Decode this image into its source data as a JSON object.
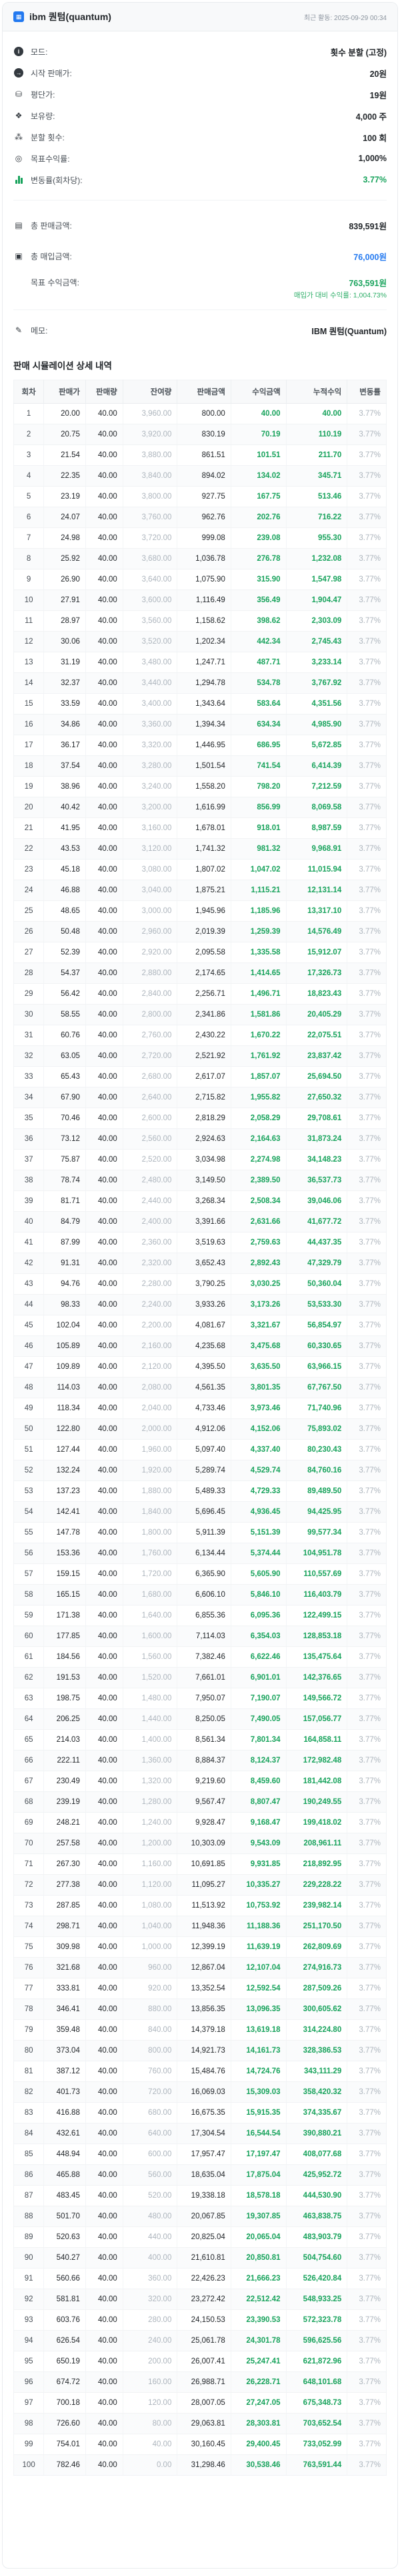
{
  "colors": {
    "accent_blue": "#2379f0",
    "profit_green": "#18a35c",
    "muted_gray": "#adb5bd"
  },
  "header": {
    "title": "ibm 퀀텀(quantum)",
    "last_activity": "최근 활동: 2025-09-29 00:34"
  },
  "params": [
    {
      "icon": "info-icon",
      "label": "모드:",
      "value": "횟수 분할 (고정)"
    },
    {
      "icon": "arrow-right-circle-icon",
      "label": "시작 판매가:",
      "value": "20원"
    },
    {
      "icon": "coins-icon",
      "label": "평단가:",
      "value": "19원"
    },
    {
      "icon": "holdings-icon",
      "label": "보유량:",
      "value": "4,000 주"
    },
    {
      "icon": "hierarchy-icon",
      "label": "분할 횟수:",
      "value": "100 회"
    },
    {
      "icon": "target-icon",
      "label": "목표수익률:",
      "value": "1,000%"
    },
    {
      "icon": "chart-bars-icon",
      "label": "변동률(회차당):",
      "value": "3.77%"
    }
  ],
  "totals": {
    "sales_label": "총 판매금액:",
    "sales_value": "839,591원",
    "buy_label": "총 매입금액:",
    "buy_value": "76,000원",
    "target_label": "목표 수익금액:",
    "target_value": "763,591원",
    "target_subnote": "매입가 대비 수익률: 1,004.73%"
  },
  "memo": {
    "label": "메모:",
    "value": "IBM 퀀텀(Quantum)"
  },
  "table": {
    "title": "판매 시뮬레이션 상세 내역",
    "headers": [
      "회차",
      "판매가",
      "판매량",
      "잔여량",
      "판매금액",
      "수익금액",
      "누적수익",
      "변동률"
    ],
    "col_names": [
      "round-cell",
      "sell-price-cell",
      "sell-qty-cell",
      "remaining-qty-cell",
      "sales-amount-cell",
      "profit-amount-cell",
      "cumulative-profit-cell",
      "change-rate-cell"
    ],
    "rows": [
      [
        "1",
        "20.00",
        "40.00",
        "3,960.00",
        "800.00",
        "40.00",
        "40.00",
        "3.77%"
      ],
      [
        "2",
        "20.75",
        "40.00",
        "3,920.00",
        "830.19",
        "70.19",
        "110.19",
        "3.77%"
      ],
      [
        "3",
        "21.54",
        "40.00",
        "3,880.00",
        "861.51",
        "101.51",
        "211.70",
        "3.77%"
      ],
      [
        "4",
        "22.35",
        "40.00",
        "3,840.00",
        "894.02",
        "134.02",
        "345.71",
        "3.77%"
      ],
      [
        "5",
        "23.19",
        "40.00",
        "3,800.00",
        "927.75",
        "167.75",
        "513.46",
        "3.77%"
      ],
      [
        "6",
        "24.07",
        "40.00",
        "3,760.00",
        "962.76",
        "202.76",
        "716.22",
        "3.77%"
      ],
      [
        "7",
        "24.98",
        "40.00",
        "3,720.00",
        "999.08",
        "239.08",
        "955.30",
        "3.77%"
      ],
      [
        "8",
        "25.92",
        "40.00",
        "3,680.00",
        "1,036.78",
        "276.78",
        "1,232.08",
        "3.77%"
      ],
      [
        "9",
        "26.90",
        "40.00",
        "3,640.00",
        "1,075.90",
        "315.90",
        "1,547.98",
        "3.77%"
      ],
      [
        "10",
        "27.91",
        "40.00",
        "3,600.00",
        "1,116.49",
        "356.49",
        "1,904.47",
        "3.77%"
      ],
      [
        "11",
        "28.97",
        "40.00",
        "3,560.00",
        "1,158.62",
        "398.62",
        "2,303.09",
        "3.77%"
      ],
      [
        "12",
        "30.06",
        "40.00",
        "3,520.00",
        "1,202.34",
        "442.34",
        "2,745.43",
        "3.77%"
      ],
      [
        "13",
        "31.19",
        "40.00",
        "3,480.00",
        "1,247.71",
        "487.71",
        "3,233.14",
        "3.77%"
      ],
      [
        "14",
        "32.37",
        "40.00",
        "3,440.00",
        "1,294.78",
        "534.78",
        "3,767.92",
        "3.77%"
      ],
      [
        "15",
        "33.59",
        "40.00",
        "3,400.00",
        "1,343.64",
        "583.64",
        "4,351.56",
        "3.77%"
      ],
      [
        "16",
        "34.86",
        "40.00",
        "3,360.00",
        "1,394.34",
        "634.34",
        "4,985.90",
        "3.77%"
      ],
      [
        "17",
        "36.17",
        "40.00",
        "3,320.00",
        "1,446.95",
        "686.95",
        "5,672.85",
        "3.77%"
      ],
      [
        "18",
        "37.54",
        "40.00",
        "3,280.00",
        "1,501.54",
        "741.54",
        "6,414.39",
        "3.77%"
      ],
      [
        "19",
        "38.96",
        "40.00",
        "3,240.00",
        "1,558.20",
        "798.20",
        "7,212.59",
        "3.77%"
      ],
      [
        "20",
        "40.42",
        "40.00",
        "3,200.00",
        "1,616.99",
        "856.99",
        "8,069.58",
        "3.77%"
      ],
      [
        "21",
        "41.95",
        "40.00",
        "3,160.00",
        "1,678.01",
        "918.01",
        "8,987.59",
        "3.77%"
      ],
      [
        "22",
        "43.53",
        "40.00",
        "3,120.00",
        "1,741.32",
        "981.32",
        "9,968.91",
        "3.77%"
      ],
      [
        "23",
        "45.18",
        "40.00",
        "3,080.00",
        "1,807.02",
        "1,047.02",
        "11,015.94",
        "3.77%"
      ],
      [
        "24",
        "46.88",
        "40.00",
        "3,040.00",
        "1,875.21",
        "1,115.21",
        "12,131.14",
        "3.77%"
      ],
      [
        "25",
        "48.65",
        "40.00",
        "3,000.00",
        "1,945.96",
        "1,185.96",
        "13,317.10",
        "3.77%"
      ],
      [
        "26",
        "50.48",
        "40.00",
        "2,960.00",
        "2,019.39",
        "1,259.39",
        "14,576.49",
        "3.77%"
      ],
      [
        "27",
        "52.39",
        "40.00",
        "2,920.00",
        "2,095.58",
        "1,335.58",
        "15,912.07",
        "3.77%"
      ],
      [
        "28",
        "54.37",
        "40.00",
        "2,880.00",
        "2,174.65",
        "1,414.65",
        "17,326.73",
        "3.77%"
      ],
      [
        "29",
        "56.42",
        "40.00",
        "2,840.00",
        "2,256.71",
        "1,496.71",
        "18,823.43",
        "3.77%"
      ],
      [
        "30",
        "58.55",
        "40.00",
        "2,800.00",
        "2,341.86",
        "1,581.86",
        "20,405.29",
        "3.77%"
      ],
      [
        "31",
        "60.76",
        "40.00",
        "2,760.00",
        "2,430.22",
        "1,670.22",
        "22,075.51",
        "3.77%"
      ],
      [
        "32",
        "63.05",
        "40.00",
        "2,720.00",
        "2,521.92",
        "1,761.92",
        "23,837.42",
        "3.77%"
      ],
      [
        "33",
        "65.43",
        "40.00",
        "2,680.00",
        "2,617.07",
        "1,857.07",
        "25,694.50",
        "3.77%"
      ],
      [
        "34",
        "67.90",
        "40.00",
        "2,640.00",
        "2,715.82",
        "1,955.82",
        "27,650.32",
        "3.77%"
      ],
      [
        "35",
        "70.46",
        "40.00",
        "2,600.00",
        "2,818.29",
        "2,058.29",
        "29,708.61",
        "3.77%"
      ],
      [
        "36",
        "73.12",
        "40.00",
        "2,560.00",
        "2,924.63",
        "2,164.63",
        "31,873.24",
        "3.77%"
      ],
      [
        "37",
        "75.87",
        "40.00",
        "2,520.00",
        "3,034.98",
        "2,274.98",
        "34,148.23",
        "3.77%"
      ],
      [
        "38",
        "78.74",
        "40.00",
        "2,480.00",
        "3,149.50",
        "2,389.50",
        "36,537.73",
        "3.77%"
      ],
      [
        "39",
        "81.71",
        "40.00",
        "2,440.00",
        "3,268.34",
        "2,508.34",
        "39,046.06",
        "3.77%"
      ],
      [
        "40",
        "84.79",
        "40.00",
        "2,400.00",
        "3,391.66",
        "2,631.66",
        "41,677.72",
        "3.77%"
      ],
      [
        "41",
        "87.99",
        "40.00",
        "2,360.00",
        "3,519.63",
        "2,759.63",
        "44,437.35",
        "3.77%"
      ],
      [
        "42",
        "91.31",
        "40.00",
        "2,320.00",
        "3,652.43",
        "2,892.43",
        "47,329.79",
        "3.77%"
      ],
      [
        "43",
        "94.76",
        "40.00",
        "2,280.00",
        "3,790.25",
        "3,030.25",
        "50,360.04",
        "3.77%"
      ],
      [
        "44",
        "98.33",
        "40.00",
        "2,240.00",
        "3,933.26",
        "3,173.26",
        "53,533.30",
        "3.77%"
      ],
      [
        "45",
        "102.04",
        "40.00",
        "2,200.00",
        "4,081.67",
        "3,321.67",
        "56,854.97",
        "3.77%"
      ],
      [
        "46",
        "105.89",
        "40.00",
        "2,160.00",
        "4,235.68",
        "3,475.68",
        "60,330.65",
        "3.77%"
      ],
      [
        "47",
        "109.89",
        "40.00",
        "2,120.00",
        "4,395.50",
        "3,635.50",
        "63,966.15",
        "3.77%"
      ],
      [
        "48",
        "114.03",
        "40.00",
        "2,080.00",
        "4,561.35",
        "3,801.35",
        "67,767.50",
        "3.77%"
      ],
      [
        "49",
        "118.34",
        "40.00",
        "2,040.00",
        "4,733.46",
        "3,973.46",
        "71,740.96",
        "3.77%"
      ],
      [
        "50",
        "122.80",
        "40.00",
        "2,000.00",
        "4,912.06",
        "4,152.06",
        "75,893.02",
        "3.77%"
      ],
      [
        "51",
        "127.44",
        "40.00",
        "1,960.00",
        "5,097.40",
        "4,337.40",
        "80,230.43",
        "3.77%"
      ],
      [
        "52",
        "132.24",
        "40.00",
        "1,920.00",
        "5,289.74",
        "4,529.74",
        "84,760.16",
        "3.77%"
      ],
      [
        "53",
        "137.23",
        "40.00",
        "1,880.00",
        "5,489.33",
        "4,729.33",
        "89,489.50",
        "3.77%"
      ],
      [
        "54",
        "142.41",
        "40.00",
        "1,840.00",
        "5,696.45",
        "4,936.45",
        "94,425.95",
        "3.77%"
      ],
      [
        "55",
        "147.78",
        "40.00",
        "1,800.00",
        "5,911.39",
        "5,151.39",
        "99,577.34",
        "3.77%"
      ],
      [
        "56",
        "153.36",
        "40.00",
        "1,760.00",
        "6,134.44",
        "5,374.44",
        "104,951.78",
        "3.77%"
      ],
      [
        "57",
        "159.15",
        "40.00",
        "1,720.00",
        "6,365.90",
        "5,605.90",
        "110,557.69",
        "3.77%"
      ],
      [
        "58",
        "165.15",
        "40.00",
        "1,680.00",
        "6,606.10",
        "5,846.10",
        "116,403.79",
        "3.77%"
      ],
      [
        "59",
        "171.38",
        "40.00",
        "1,640.00",
        "6,855.36",
        "6,095.36",
        "122,499.15",
        "3.77%"
      ],
      [
        "60",
        "177.85",
        "40.00",
        "1,600.00",
        "7,114.03",
        "6,354.03",
        "128,853.18",
        "3.77%"
      ],
      [
        "61",
        "184.56",
        "40.00",
        "1,560.00",
        "7,382.46",
        "6,622.46",
        "135,475.64",
        "3.77%"
      ],
      [
        "62",
        "191.53",
        "40.00",
        "1,520.00",
        "7,661.01",
        "6,901.01",
        "142,376.65",
        "3.77%"
      ],
      [
        "63",
        "198.75",
        "40.00",
        "1,480.00",
        "7,950.07",
        "7,190.07",
        "149,566.72",
        "3.77%"
      ],
      [
        "64",
        "206.25",
        "40.00",
        "1,440.00",
        "8,250.05",
        "7,490.05",
        "157,056.77",
        "3.77%"
      ],
      [
        "65",
        "214.03",
        "40.00",
        "1,400.00",
        "8,561.34",
        "7,801.34",
        "164,858.11",
        "3.77%"
      ],
      [
        "66",
        "222.11",
        "40.00",
        "1,360.00",
        "8,884.37",
        "8,124.37",
        "172,982.48",
        "3.77%"
      ],
      [
        "67",
        "230.49",
        "40.00",
        "1,320.00",
        "9,219.60",
        "8,459.60",
        "181,442.08",
        "3.77%"
      ],
      [
        "68",
        "239.19",
        "40.00",
        "1,280.00",
        "9,567.47",
        "8,807.47",
        "190,249.55",
        "3.77%"
      ],
      [
        "69",
        "248.21",
        "40.00",
        "1,240.00",
        "9,928.47",
        "9,168.47",
        "199,418.02",
        "3.77%"
      ],
      [
        "70",
        "257.58",
        "40.00",
        "1,200.00",
        "10,303.09",
        "9,543.09",
        "208,961.11",
        "3.77%"
      ],
      [
        "71",
        "267.30",
        "40.00",
        "1,160.00",
        "10,691.85",
        "9,931.85",
        "218,892.95",
        "3.77%"
      ],
      [
        "72",
        "277.38",
        "40.00",
        "1,120.00",
        "11,095.27",
        "10,335.27",
        "229,228.22",
        "3.77%"
      ],
      [
        "73",
        "287.85",
        "40.00",
        "1,080.00",
        "11,513.92",
        "10,753.92",
        "239,982.14",
        "3.77%"
      ],
      [
        "74",
        "298.71",
        "40.00",
        "1,040.00",
        "11,948.36",
        "11,188.36",
        "251,170.50",
        "3.77%"
      ],
      [
        "75",
        "309.98",
        "40.00",
        "1,000.00",
        "12,399.19",
        "11,639.19",
        "262,809.69",
        "3.77%"
      ],
      [
        "76",
        "321.68",
        "40.00",
        "960.00",
        "12,867.04",
        "12,107.04",
        "274,916.73",
        "3.77%"
      ],
      [
        "77",
        "333.81",
        "40.00",
        "920.00",
        "13,352.54",
        "12,592.54",
        "287,509.26",
        "3.77%"
      ],
      [
        "78",
        "346.41",
        "40.00",
        "880.00",
        "13,856.35",
        "13,096.35",
        "300,605.62",
        "3.77%"
      ],
      [
        "79",
        "359.48",
        "40.00",
        "840.00",
        "14,379.18",
        "13,619.18",
        "314,224.80",
        "3.77%"
      ],
      [
        "80",
        "373.04",
        "40.00",
        "800.00",
        "14,921.73",
        "14,161.73",
        "328,386.53",
        "3.77%"
      ],
      [
        "81",
        "387.12",
        "40.00",
        "760.00",
        "15,484.76",
        "14,724.76",
        "343,111.29",
        "3.77%"
      ],
      [
        "82",
        "401.73",
        "40.00",
        "720.00",
        "16,069.03",
        "15,309.03",
        "358,420.32",
        "3.77%"
      ],
      [
        "83",
        "416.88",
        "40.00",
        "680.00",
        "16,675.35",
        "15,915.35",
        "374,335.67",
        "3.77%"
      ],
      [
        "84",
        "432.61",
        "40.00",
        "640.00",
        "17,304.54",
        "16,544.54",
        "390,880.21",
        "3.77%"
      ],
      [
        "85",
        "448.94",
        "40.00",
        "600.00",
        "17,957.47",
        "17,197.47",
        "408,077.68",
        "3.77%"
      ],
      [
        "86",
        "465.88",
        "40.00",
        "560.00",
        "18,635.04",
        "17,875.04",
        "425,952.72",
        "3.77%"
      ],
      [
        "87",
        "483.45",
        "40.00",
        "520.00",
        "19,338.18",
        "18,578.18",
        "444,530.90",
        "3.77%"
      ],
      [
        "88",
        "501.70",
        "40.00",
        "480.00",
        "20,067.85",
        "19,307.85",
        "463,838.75",
        "3.77%"
      ],
      [
        "89",
        "520.63",
        "40.00",
        "440.00",
        "20,825.04",
        "20,065.04",
        "483,903.79",
        "3.77%"
      ],
      [
        "90",
        "540.27",
        "40.00",
        "400.00",
        "21,610.81",
        "20,850.81",
        "504,754.60",
        "3.77%"
      ],
      [
        "91",
        "560.66",
        "40.00",
        "360.00",
        "22,426.23",
        "21,666.23",
        "526,420.84",
        "3.77%"
      ],
      [
        "92",
        "581.81",
        "40.00",
        "320.00",
        "23,272.42",
        "22,512.42",
        "548,933.25",
        "3.77%"
      ],
      [
        "93",
        "603.76",
        "40.00",
        "280.00",
        "24,150.53",
        "23,390.53",
        "572,323.78",
        "3.77%"
      ],
      [
        "94",
        "626.54",
        "40.00",
        "240.00",
        "25,061.78",
        "24,301.78",
        "596,625.56",
        "3.77%"
      ],
      [
        "95",
        "650.19",
        "40.00",
        "200.00",
        "26,007.41",
        "25,247.41",
        "621,872.96",
        "3.77%"
      ],
      [
        "96",
        "674.72",
        "40.00",
        "160.00",
        "26,988.71",
        "26,228.71",
        "648,101.68",
        "3.77%"
      ],
      [
        "97",
        "700.18",
        "40.00",
        "120.00",
        "28,007.05",
        "27,247.05",
        "675,348.73",
        "3.77%"
      ],
      [
        "98",
        "726.60",
        "40.00",
        "80.00",
        "29,063.81",
        "28,303.81",
        "703,652.54",
        "3.77%"
      ],
      [
        "99",
        "754.01",
        "40.00",
        "40.00",
        "30,160.45",
        "29,400.45",
        "733,052.99",
        "3.77%"
      ],
      [
        "100",
        "782.46",
        "40.00",
        "0.00",
        "31,298.46",
        "30,538.46",
        "763,591.44",
        "3.77%"
      ]
    ]
  }
}
